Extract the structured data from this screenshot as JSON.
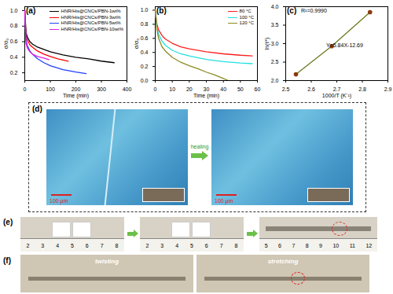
{
  "chart_data": [
    {
      "type": "line",
      "title": "(a)",
      "x_label": "Time (min)",
      "y_label": "σ/σ₀",
      "xlim": [
        0,
        400
      ],
      "xticks": [
        0,
        100,
        200,
        300,
        400
      ],
      "ylim": [
        0.1,
        1.05
      ],
      "yticks": [
        0.2,
        0.4,
        0.6,
        0.8,
        {
          "value": 1,
          "label": "1.0"
        }
      ],
      "legend": "top-right",
      "series": [
        {
          "name": "HNR/His@CNCs/PBN-1wt%",
          "color": "#000000",
          "x": [
            0,
            5,
            10,
            20,
            30,
            50,
            75,
            100,
            150,
            200,
            250,
            300,
            350
          ],
          "values": [
            1.0,
            0.72,
            0.66,
            0.6,
            0.57,
            0.53,
            0.5,
            0.47,
            0.43,
            0.4,
            0.38,
            0.35,
            0.33
          ]
        },
        {
          "name": "HNR/His@CNCs/PBN-3wt%",
          "color": "#ff0000",
          "x": [
            0,
            5,
            10,
            20,
            30,
            50,
            75,
            100,
            130,
            170
          ],
          "values": [
            1.0,
            0.68,
            0.62,
            0.56,
            0.53,
            0.48,
            0.44,
            0.41,
            0.38,
            0.35
          ]
        },
        {
          "name": "HNR/His@CNCs/PBN-5wt%",
          "color": "#1f3fff",
          "x": [
            0,
            5,
            10,
            20,
            30,
            50,
            75,
            100,
            150,
            200,
            240
          ],
          "values": [
            1.0,
            0.62,
            0.55,
            0.48,
            0.44,
            0.38,
            0.33,
            0.29,
            0.24,
            0.21,
            0.19
          ]
        },
        {
          "name": "HNR/His@CNCs/PBN-10wt%",
          "color": "#e020e0",
          "x": [
            0,
            5,
            10,
            20,
            30,
            50,
            75,
            95
          ],
          "values": [
            1.0,
            0.58,
            0.52,
            0.47,
            0.44,
            0.41,
            0.39,
            0.37
          ]
        }
      ]
    },
    {
      "type": "line",
      "title": "(b)",
      "x_label": "Time (min)",
      "y_label": "σ/σ₀",
      "xlim": [
        0,
        60
      ],
      "xticks": [
        0,
        10,
        20,
        30,
        40,
        50,
        60
      ],
      "ylim": [
        0,
        1.05
      ],
      "yticks": [
        {
          "value": 0,
          "label": "0.0"
        },
        0.2,
        0.4,
        0.6,
        0.8,
        {
          "value": 1,
          "label": "1.0"
        }
      ],
      "legend": "top-right",
      "series": [
        {
          "name": "80 °C",
          "color": "#ff2020",
          "x": [
            0,
            1,
            2,
            4,
            6,
            10,
            15,
            20,
            30,
            40,
            50,
            57
          ],
          "values": [
            1.0,
            0.8,
            0.72,
            0.64,
            0.59,
            0.53,
            0.48,
            0.45,
            0.41,
            0.38,
            0.36,
            0.35
          ]
        },
        {
          "name": "100 °C",
          "color": "#20e0e0",
          "x": [
            0,
            1,
            2,
            4,
            6,
            10,
            15,
            20,
            30,
            40,
            50,
            57
          ],
          "values": [
            1.0,
            0.75,
            0.66,
            0.56,
            0.5,
            0.43,
            0.38,
            0.35,
            0.3,
            0.27,
            0.25,
            0.24
          ]
        },
        {
          "name": "120 °C",
          "color": "#8a8a20",
          "x": [
            0,
            1,
            2,
            4,
            6,
            10,
            15,
            20,
            25,
            30,
            35,
            40,
            43
          ],
          "values": [
            1.0,
            0.72,
            0.6,
            0.48,
            0.42,
            0.33,
            0.26,
            0.21,
            0.17,
            0.12,
            0.08,
            0.03,
            0.0
          ]
        }
      ]
    },
    {
      "type": "scatter",
      "title": "(c)",
      "x_label": "1000/T (K⁻¹)",
      "y_label": "ln(τ*)",
      "xlim": [
        2.5,
        2.9
      ],
      "xticks": [
        2.5,
        2.6,
        2.7,
        2.8,
        2.9
      ],
      "ylim": [
        2.0,
        4.0
      ],
      "yticks": [
        {
          "value": 2,
          "label": "2.0"
        },
        2.5,
        {
          "value": 3,
          "label": "3.0"
        },
        3.5,
        {
          "value": 4,
          "label": "4.0"
        }
      ],
      "annotations": [
        "R²=0.9990",
        "Y=5.84X-12.69"
      ],
      "series": [
        {
          "name": "ln(τ*)",
          "color": "#8a3a10",
          "marker": "circle",
          "line_style": "solid",
          "x": [
            2.54,
            2.68,
            2.83
          ],
          "values": [
            2.17,
            2.93,
            3.85
          ]
        }
      ]
    }
  ],
  "photos": {
    "d": {
      "label": "(d)",
      "arrow_text": "healing",
      "scale_bars": [
        "100 μm",
        "100 μm"
      ]
    },
    "e": {
      "label": "(e)",
      "rulers": [
        [
          "2",
          "3",
          "4",
          "5",
          "6",
          "7",
          "8"
        ],
        [
          "2",
          "3",
          "4",
          "5",
          "6",
          "7",
          "8"
        ],
        [
          "5",
          "6",
          "7",
          "8",
          "9",
          "10",
          "11",
          "12"
        ]
      ]
    },
    "f": {
      "label": "(f)",
      "captions": [
        "twisting",
        "stretching"
      ]
    }
  }
}
